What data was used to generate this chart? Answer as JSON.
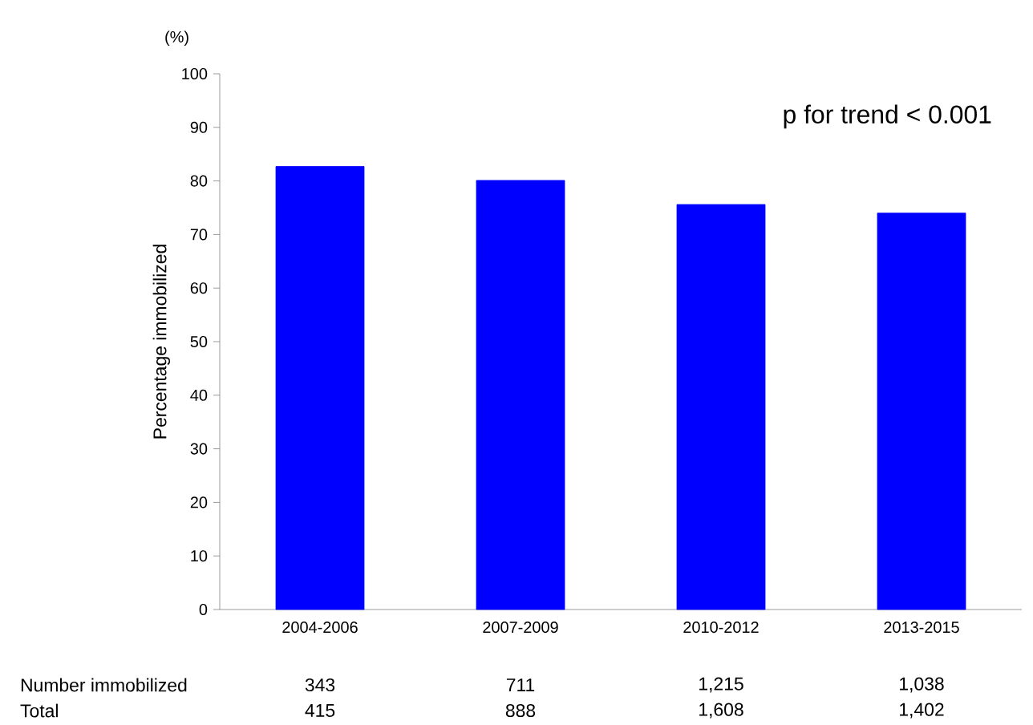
{
  "chart_data": {
    "type": "bar",
    "ylabel": "Percentage immobilized",
    "categories": [
      "2004-2006",
      "2007-2009",
      "2010-2012",
      "2013-2015"
    ],
    "values": [
      82.7,
      80.1,
      75.6,
      74.0
    ],
    "color": "#0000ff",
    "ylim": [
      0,
      100
    ],
    "yticks": [
      0,
      10,
      20,
      30,
      40,
      50,
      60,
      70,
      80,
      90,
      100
    ],
    "annotations": [
      "(%)",
      "p for trend < 0.001",
      "Number immobilized",
      "343",
      "711",
      "1,215",
      "1,038",
      "Total",
      "415",
      "888",
      "1,608",
      "1,402"
    ]
  }
}
